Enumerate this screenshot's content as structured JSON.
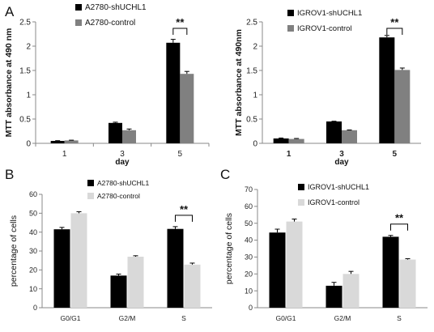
{
  "panels": [
    {
      "letter": "A"
    },
    {
      "letter": ""
    },
    {
      "letter": "B"
    },
    {
      "letter": "C"
    }
  ],
  "chart_data": [
    {
      "type": "bar",
      "categories": [
        "1",
        "3",
        "5"
      ],
      "xlabel": "day",
      "ylabel": "MTT absorbance at 490 nm",
      "ylim": [
        0,
        2.5
      ],
      "yticks": [
        "0",
        "0.5",
        "1",
        "1.5",
        "2",
        "2.5"
      ],
      "legend_position": "top-center",
      "series": [
        {
          "name": "A2780-shUCHL1",
          "color": "#000000",
          "values": [
            0.05,
            0.42,
            2.07
          ],
          "errors": [
            0.005,
            0.015,
            0.07
          ]
        },
        {
          "name": "A2780-control",
          "color": "#808080",
          "values": [
            0.06,
            0.27,
            1.43
          ],
          "errors": [
            0.005,
            0.025,
            0.05
          ]
        }
      ],
      "significance": [
        {
          "category": "5",
          "label": "**"
        }
      ]
    },
    {
      "type": "bar",
      "categories": [
        "1",
        "3",
        "5"
      ],
      "xlabel": "day",
      "ylabel": "MTT absorbance at 490nm",
      "ylim": [
        0,
        2.5
      ],
      "yticks": [
        "0",
        "0.5",
        "1",
        "1.5",
        "2",
        "2.5"
      ],
      "legend_position": "top-center",
      "series": [
        {
          "name": "IGROV1-shUCHL1",
          "color": "#000000",
          "values": [
            0.1,
            0.45,
            2.18
          ],
          "errors": [
            0.01,
            0.005,
            0.04
          ]
        },
        {
          "name": "IGROV1-control",
          "color": "#808080",
          "values": [
            0.09,
            0.27,
            1.51
          ],
          "errors": [
            0.01,
            0.005,
            0.04
          ]
        }
      ],
      "significance": [
        {
          "category": "5",
          "label": "**"
        }
      ]
    },
    {
      "type": "bar",
      "categories": [
        "G0/G1",
        "G2/M",
        "S"
      ],
      "xlabel": "",
      "ylabel": "percentage of cells",
      "ylim": [
        0,
        60
      ],
      "yticks": [
        "0",
        "10",
        "20",
        "30",
        "40",
        "50",
        "60"
      ],
      "legend_position": "top-center",
      "series": [
        {
          "name": "A2780-shUCHL1",
          "color": "#000000",
          "values": [
            41.5,
            17,
            41.7
          ],
          "errors": [
            1,
            0.8,
            1.2
          ]
        },
        {
          "name": "A2780-control",
          "color": "#d9d9d9",
          "values": [
            50,
            27,
            22.8
          ],
          "errors": [
            0.8,
            0.5,
            0.8
          ]
        }
      ],
      "significance": [
        {
          "category": "S",
          "label": "**"
        }
      ]
    },
    {
      "type": "bar",
      "categories": [
        "G0/G1",
        "G2/M",
        "S"
      ],
      "xlabel": "",
      "ylabel": "percentage of cells",
      "ylim": [
        0,
        70
      ],
      "yticks": [
        "0",
        "10",
        "20",
        "30",
        "40",
        "50",
        "60",
        "70"
      ],
      "legend_position": "top-center",
      "series": [
        {
          "name": "IGROV1-shUCHL1",
          "color": "#000000",
          "values": [
            44.5,
            13,
            42
          ],
          "errors": [
            2,
            2,
            0.8
          ]
        },
        {
          "name": "IGROV1-control",
          "color": "#d9d9d9",
          "values": [
            51,
            20,
            28.5
          ],
          "errors": [
            1.5,
            1.5,
            0.5
          ]
        }
      ],
      "significance": [
        {
          "category": "S",
          "label": "**"
        }
      ]
    }
  ]
}
